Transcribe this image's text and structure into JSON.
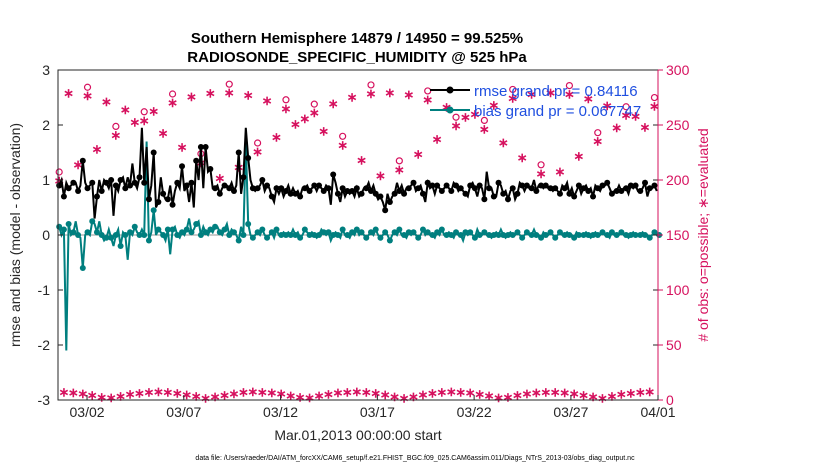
{
  "chart_data": {
    "type": "line",
    "title_line1": "Southern Hemisphere 14879 / 14950 = 99.525%",
    "title_line2": "RADIOSONDE_SPECIFIC_HUMIDITY @ 525 hPa",
    "xlabel": "Mar.01,2013 00:00:00 start",
    "ylabel_left": "rmse and bias (model - observation)",
    "ylabel_right": "# of obs: o=possible; ∗=evaluated",
    "ylim_left": [
      -3,
      3
    ],
    "ylim_right": [
      0,
      300
    ],
    "xlim_days": [
      0.5,
      31.5
    ],
    "x_ticks": [
      {
        "day": 2,
        "label": "03/02"
      },
      {
        "day": 7,
        "label": "03/07"
      },
      {
        "day": 12,
        "label": "03/12"
      },
      {
        "day": 17,
        "label": "03/17"
      },
      {
        "day": 22,
        "label": "03/22"
      },
      {
        "day": 27,
        "label": "03/27"
      },
      {
        "day": 32,
        "label": "04/01"
      }
    ],
    "yticks_left": [
      "-3",
      "-2",
      "-1",
      "0",
      "1",
      "2",
      "3"
    ],
    "yticks_right": [
      "0",
      "50",
      "100",
      "150",
      "200",
      "250",
      "300"
    ],
    "legend": {
      "rmse_label": "rmse grand pr = 0.84116",
      "bias_label": "bias grand pr = 0.067747"
    },
    "footer": "data file: /Users/raeder/DAI/ATM_forcXX/CAM6_setup/f.e21.FHIST_BGC.f09_025.CAM6assim.011/Diags_NTrS_2013-03/obs_diag_output.nc",
    "colors": {
      "rmse": "#000000",
      "bias": "#007f7f",
      "obs": "#d6115e",
      "zero": "#aaaaaa"
    },
    "series": [
      {
        "name": "rmse",
        "values": [
          0.9,
          1.0,
          0.7,
          0.95,
          0.85,
          0.9,
          0.95,
          0.95,
          0.8,
          0.9,
          1.35,
          0.95,
          0.85,
          0.9,
          0.95,
          0.3,
          0.7,
          1.0,
          0.8,
          1.0,
          0.95,
          0.85,
          1.0,
          0.35,
          0.9,
          0.8,
          1.0,
          1.05,
          0.85,
          1.05,
          0.9,
          1.3,
          0.95,
          0.85,
          1.05,
          1.95,
          0.95,
          1.6,
          0.65,
          0.9,
          1.5,
          0.5,
          0.6,
          1.05,
          0.75,
          0.65,
          0.65,
          0.9,
          0.55,
          0.8,
          0.95,
          0.85,
          1.25,
          0.8,
          0.9,
          0.6,
          0.95,
          0.5,
          1.35,
          1.0,
          1.6,
          0.85,
          1.6,
          1.15,
          1.2,
          0.85,
          0.85,
          0.9,
          0.75,
          0.85,
          0.9,
          0.9,
          0.85,
          0.95,
          0.8,
          0.9,
          1.5,
          0.75,
          1.05,
          1.95,
          1.4,
          1.0,
          0.85,
          0.8,
          0.85,
          0.9,
          1.0,
          0.8,
          0.9,
          0.85,
          0.7,
          0.6,
          0.85,
          0.75,
          0.85,
          0.7,
          0.8,
          0.9,
          0.75,
          0.85,
          0.75,
          0.8,
          0.7,
          0.85,
          0.85,
          0.9,
          0.8,
          0.85,
          0.9,
          0.8,
          0.9,
          0.85,
          0.8,
          0.9,
          0.85,
          0.55,
          1.1,
          0.95,
          0.75,
          0.6,
          0.85,
          0.7,
          0.8,
          0.75,
          0.8,
          0.7,
          0.85,
          0.7,
          0.75,
          0.85,
          0.85,
          0.95,
          0.8,
          0.9,
          0.75,
          0.65,
          0.7,
          0.6,
          0.45,
          0.75,
          0.6,
          0.7,
          0.75,
          0.95,
          0.8,
          0.9,
          0.75,
          0.85,
          0.85,
          0.9,
          0.95,
          0.8,
          0.85,
          0.9,
          0.75,
          0.6,
          0.95,
          0.85,
          0.9,
          0.75,
          0.9,
          0.85,
          0.8,
          0.85,
          0.9,
          0.85,
          0.8,
          0.95,
          0.9,
          0.8,
          0.85,
          0.8,
          0.75,
          0.7,
          0.9,
          0.95,
          0.85,
          0.7,
          0.9,
          0.85,
          0.65,
          1.15,
          0.85,
          0.85,
          0.7,
          0.7,
          0.95,
          0.9,
          0.75,
          0.8,
          0.65,
          0.8,
          0.85,
          0.65,
          0.75,
          0.95,
          0.9,
          0.8,
          0.9,
          0.85,
          0.85,
          1.0,
          0.8,
          0.9,
          0.9,
          0.85,
          0.9,
          0.85,
          0.85,
          0.8,
          0.85,
          0.8,
          0.75,
          0.9,
          0.85,
          0.95,
          0.75,
          0.85,
          0.7,
          0.8,
          0.9,
          0.75,
          0.85,
          0.9,
          0.8,
          0.85,
          0.7,
          0.9,
          0.85,
          0.8,
          0.9,
          0.9,
          0.95,
          0.85,
          0.75,
          0.8,
          0.8,
          0.9,
          0.8,
          0.85,
          0.85,
          0.75,
          0.9,
          0.85,
          0.9,
          0.8,
          0.8,
          0.85,
          0.95,
          0.7,
          0.85,
          0.85,
          0.9,
          0.8
        ]
      },
      {
        "name": "bias",
        "values": [
          0.15,
          0.0,
          0.1,
          -2.1,
          0.2,
          0.0,
          0.05,
          0.25,
          0.0,
          -0.05,
          -0.6,
          0.0,
          0.05,
          0.0,
          0.25,
          0.2,
          0.05,
          0.25,
          0.0,
          -0.1,
          -0.05,
          0.1,
          -0.05,
          -0.2,
          0.0,
          0.1,
          -0.2,
          0.05,
          0.0,
          -0.45,
          0.05,
          0.0,
          0.15,
          0.05,
          0.0,
          0.1,
          0.0,
          1.7,
          -0.1,
          0.05,
          0.45,
          0.0,
          0.1,
          0.05,
          0.0,
          -0.1,
          0.1,
          -0.35,
          0.1,
          0.15,
          0.0,
          -0.05,
          0.05,
          0.0,
          0.1,
          0.3,
          0.05,
          0.1,
          0.2,
          0.25,
          0.0,
          0.15,
          0.05,
          0.0,
          0.1,
          0.05,
          0.15,
          0.15,
          0.05,
          0.0,
          0.1,
          0.2,
          0.0,
          0.1,
          0.05,
          0.0,
          -0.1,
          0.15,
          0.0,
          1.7,
          0.2,
          0.0,
          -0.05,
          0.0,
          0.05,
          0.0,
          0.1,
          0.0,
          -0.05,
          0.0,
          0.05,
          -0.05,
          0.1,
          0.0,
          0.0,
          0.05,
          0.0,
          0.05,
          0.0,
          0.1,
          0.0,
          0.05,
          -0.05,
          0.0,
          0.1,
          0.05,
          0.0,
          0.05,
          0.0,
          -0.05,
          0.0,
          0.1,
          0.05,
          0.0,
          0.05,
          -0.1,
          0.0,
          0.05,
          0.0,
          -0.05,
          0.1,
          0.0,
          0.0,
          -0.05,
          0.05,
          0.0,
          0.1,
          0.0,
          0.05,
          0.0,
          -0.05,
          0.0,
          0.05,
          0.0,
          0.1,
          0.0,
          -0.05,
          0.0,
          0.05,
          0.0,
          -0.1,
          0.0,
          0.05,
          0.0,
          0.1,
          0.0,
          0.0,
          -0.05,
          0.05,
          0.0,
          0.05,
          0.0,
          -0.05,
          0.0,
          0.1,
          0.0,
          0.05,
          0.0,
          0.0,
          -0.05,
          0.05,
          0.0,
          0.1,
          0.0,
          0.0,
          0.05,
          0.0,
          -0.05,
          0.05,
          0.0,
          0.0,
          -0.1,
          0.05,
          0.0,
          0.05,
          0.0,
          -0.05,
          0.1,
          0.0,
          0.0,
          0.05,
          0.0,
          0.0,
          -0.05,
          0.0,
          0.05,
          0.0,
          0.1,
          0.0,
          -0.05,
          0.0,
          0.05,
          0.0,
          0.0,
          0.05,
          0.0,
          -0.05,
          0.0,
          0.05,
          0.0,
          0.0,
          0.1,
          0.0,
          0.0,
          -0.05,
          0.05,
          0.0,
          0.0,
          0.05,
          0.0,
          -0.05,
          0.0,
          0.05,
          0.0,
          0.0,
          0.05,
          0.0,
          0.0,
          -0.05,
          0.05,
          0.0,
          0.0,
          0.0,
          0.05,
          0.0,
          -0.05,
          0.0,
          0.05,
          0.0,
          0.0,
          0.05,
          0.0,
          0.0,
          -0.05,
          0.05,
          0.0,
          0.0,
          0.0,
          0.05,
          0.0,
          0.0,
          -0.05,
          0.0,
          0.05,
          0.0,
          0.0,
          0.0,
          0.05,
          0.0,
          0.0,
          -0.05,
          0.0,
          0.05,
          0.0,
          0.0
        ]
      }
    ]
  }
}
